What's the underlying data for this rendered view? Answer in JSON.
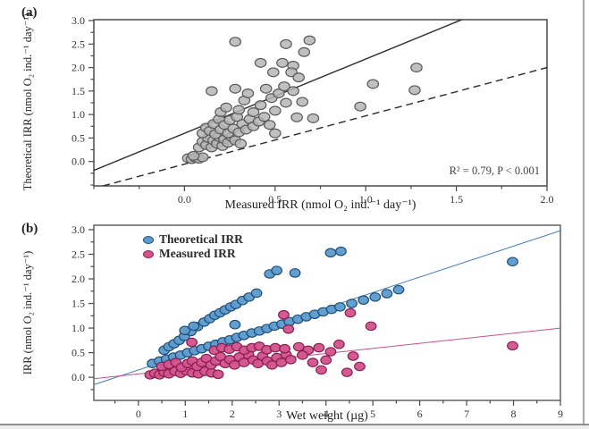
{
  "chart_data": [
    {
      "type": "scatter",
      "panel_label": "(a)",
      "title": "",
      "xlabel": "Measured IRR (nmol O₂ ind.⁻¹ day⁻¹)",
      "ylabel": "Theoretical IRR (nmol O₂ ind.⁻¹ day⁻¹)",
      "annotation": "R² = 0.79, P < 0.001",
      "xlim": [
        -0.5,
        2.0
      ],
      "ylim": [
        -0.52,
        3.02
      ],
      "xticks": [
        0.0,
        0.5,
        1.0,
        1.5,
        2.0
      ],
      "xtick_labels": [
        "0.0",
        "0.5",
        "1.0",
        "1.5",
        "2.0"
      ],
      "yticks": [
        0.0,
        0.5,
        1.0,
        1.5,
        2.0,
        2.5,
        3.0
      ],
      "ytick_labels": [
        "0.0",
        "0.5",
        "1.0",
        "1.5",
        "2.0",
        "2.5",
        "3.0"
      ],
      "minor_x_step": 0.25,
      "minor_y_step": 0.25,
      "grid": false,
      "legend": "none",
      "axis_color": "#4a4a4a",
      "marker_rx": 6.2,
      "marker_ry": 4.9,
      "lines": [
        {
          "name": "regression-line",
          "style": "solid",
          "color": "#2b2b2b",
          "x1": -0.5,
          "y1": -0.19,
          "x2": 1.53,
          "y2": 3.02
        },
        {
          "name": "identity-line",
          "style": "dashed",
          "color": "#2b2b2b",
          "x1": -0.45,
          "y1": -0.52,
          "x2": 2.0,
          "y2": 2.0
        }
      ],
      "series": [
        {
          "name": "IRR data",
          "color": "#b5b5b5",
          "edge": "#5a5a5a",
          "opacity": 0.85,
          "points": [
            [
              0.02,
              0.07
            ],
            [
              0.04,
              0.05
            ],
            [
              0.06,
              0.08
            ],
            [
              0.08,
              0.06
            ],
            [
              0.1,
              0.09
            ],
            [
              0.05,
              0.12
            ],
            [
              0.08,
              0.3
            ],
            [
              0.1,
              0.42
            ],
            [
              0.12,
              0.35
            ],
            [
              0.13,
              0.5
            ],
            [
              0.15,
              0.3
            ],
            [
              0.16,
              0.45
            ],
            [
              0.18,
              0.38
            ],
            [
              0.19,
              0.52
            ],
            [
              0.21,
              0.33
            ],
            [
              0.22,
              0.47
            ],
            [
              0.24,
              0.4
            ],
            [
              0.26,
              0.52
            ],
            [
              0.28,
              0.45
            ],
            [
              0.31,
              0.38
            ],
            [
              0.1,
              0.6
            ],
            [
              0.12,
              0.72
            ],
            [
              0.14,
              0.65
            ],
            [
              0.16,
              0.8
            ],
            [
              0.17,
              0.58
            ],
            [
              0.19,
              0.9
            ],
            [
              0.2,
              0.68
            ],
            [
              0.22,
              0.78
            ],
            [
              0.24,
              0.6
            ],
            [
              0.25,
              0.88
            ],
            [
              0.27,
              0.7
            ],
            [
              0.29,
              0.95
            ],
            [
              0.3,
              0.62
            ],
            [
              0.32,
              0.8
            ],
            [
              0.34,
              0.68
            ],
            [
              0.36,
              0.9
            ],
            [
              0.38,
              0.75
            ],
            [
              0.41,
              0.85
            ],
            [
              0.44,
              0.95
            ],
            [
              0.47,
              0.78
            ],
            [
              0.15,
              1.5
            ],
            [
              0.2,
              1.05
            ],
            [
              0.23,
              1.15
            ],
            [
              0.28,
              1.55
            ],
            [
              0.3,
              1.1
            ],
            [
              0.33,
              1.3
            ],
            [
              0.35,
              1.45
            ],
            [
              0.38,
              1.05
            ],
            [
              0.42,
              1.2
            ],
            [
              0.45,
              1.55
            ],
            [
              0.48,
              1.35
            ],
            [
              0.5,
              1.08
            ],
            [
              0.52,
              1.45
            ],
            [
              0.55,
              1.6
            ],
            [
              0.56,
              1.25
            ],
            [
              0.6,
              1.5
            ],
            [
              0.28,
              2.55
            ],
            [
              0.56,
              2.5
            ],
            [
              0.69,
              2.58
            ],
            [
              0.66,
              2.33
            ],
            [
              0.42,
              2.1
            ],
            [
              0.54,
              2.1
            ],
            [
              0.6,
              2.04
            ],
            [
              0.49,
              1.9
            ],
            [
              0.59,
              1.9
            ],
            [
              0.63,
              1.79
            ],
            [
              0.62,
              0.94
            ],
            [
              0.71,
              0.92
            ],
            [
              0.65,
              1.27
            ],
            [
              0.97,
              1.17
            ],
            [
              1.04,
              1.65
            ],
            [
              1.27,
              1.52
            ],
            [
              1.28,
              2.0
            ],
            [
              0.5,
              0.6
            ]
          ]
        }
      ]
    },
    {
      "type": "scatter",
      "panel_label": "(b)",
      "title": "",
      "xlabel": "Wet weight (µg)",
      "ylabel": "IRR (nmol O₂ ind.⁻¹ day⁻¹)",
      "annotation": "",
      "xlim": [
        -0.95,
        9.0
      ],
      "ylim": [
        -0.47,
        3.09
      ],
      "xticks": [
        0,
        1,
        2,
        3,
        4,
        5,
        6,
        7,
        8,
        9
      ],
      "xtick_labels": [
        "0",
        "1",
        "2",
        "3",
        "4",
        "5",
        "6",
        "7",
        "8",
        "9"
      ],
      "yticks": [
        0.0,
        0.5,
        1.0,
        1.5,
        2.0,
        2.5,
        3.0
      ],
      "ytick_labels": [
        "0.0",
        "0.5",
        "1.0",
        "1.5",
        "2.0",
        "2.5",
        "3.0"
      ],
      "minor_x_step": 0.5,
      "minor_y_step": 0.25,
      "grid": false,
      "legend": "top-left-inside",
      "axis_color": "#4a4a4a",
      "marker_rx": 5.8,
      "marker_ry": 4.7,
      "lines": [
        {
          "name": "theoretical-trend-line",
          "style": "solid",
          "color": "#3c7ab8",
          "x1": -0.95,
          "y1": -0.15,
          "x2": 9.0,
          "y2": 2.98
        },
        {
          "name": "measured-trend-line",
          "style": "solid",
          "color": "#cc4f88",
          "x1": -0.95,
          "y1": -0.03,
          "x2": 9.0,
          "y2": 1.0
        }
      ],
      "series": [
        {
          "name": "Theoretical IRR",
          "color": "#5b9bcd",
          "edge": "#1e4e79",
          "opacity": 0.95,
          "points": [
            [
              0.55,
              0.55
            ],
            [
              0.65,
              0.62
            ],
            [
              0.76,
              0.68
            ],
            [
              0.87,
              0.75
            ],
            [
              0.98,
              0.83
            ],
            [
              1.12,
              0.93
            ],
            [
              1.26,
              1.03
            ],
            [
              1.4,
              1.12
            ],
            [
              1.52,
              1.19
            ],
            [
              1.63,
              1.26
            ],
            [
              1.74,
              1.31
            ],
            [
              1.85,
              1.37
            ],
            [
              1.97,
              1.43
            ],
            [
              2.08,
              1.48
            ],
            [
              2.22,
              1.56
            ],
            [
              2.36,
              1.63
            ],
            [
              0.3,
              0.28
            ],
            [
              0.45,
              0.33
            ],
            [
              0.6,
              0.37
            ],
            [
              0.75,
              0.41
            ],
            [
              0.9,
              0.45
            ],
            [
              1.05,
              0.5
            ],
            [
              1.2,
              0.54
            ],
            [
              1.35,
              0.58
            ],
            [
              1.5,
              0.63
            ],
            [
              1.65,
              0.67
            ],
            [
              1.8,
              0.72
            ],
            [
              1.95,
              0.76
            ],
            [
              2.1,
              0.81
            ],
            [
              2.25,
              0.85
            ],
            [
              2.42,
              0.9
            ],
            [
              2.58,
              0.94
            ],
            [
              2.74,
              0.99
            ],
            [
              2.9,
              1.04
            ],
            [
              3.06,
              1.08
            ],
            [
              3.22,
              1.13
            ],
            [
              3.4,
              1.18
            ],
            [
              3.58,
              1.23
            ],
            [
              3.76,
              1.28
            ],
            [
              3.94,
              1.33
            ],
            [
              4.12,
              1.38
            ],
            [
              4.3,
              1.43
            ],
            [
              4.55,
              1.5
            ],
            [
              4.8,
              1.57
            ],
            [
              5.05,
              1.63
            ],
            [
              5.3,
              1.7
            ],
            [
              5.55,
              1.78
            ],
            [
              2.52,
              1.71
            ],
            [
              2.8,
              2.1
            ],
            [
              2.95,
              2.17
            ],
            [
              3.34,
              2.12
            ],
            [
              4.1,
              2.53
            ],
            [
              4.32,
              2.56
            ],
            [
              7.98,
              2.35
            ],
            [
              0.99,
              0.95
            ],
            [
              1.18,
              1.04
            ],
            [
              2.06,
              1.07
            ]
          ]
        },
        {
          "name": "Measured IRR",
          "color": "#d2528c",
          "edge": "#8c1d50",
          "opacity": 0.95,
          "points": [
            [
              0.25,
              0.05
            ],
            [
              0.35,
              0.08
            ],
            [
              0.45,
              0.05
            ],
            [
              0.55,
              0.1
            ],
            [
              0.65,
              0.07
            ],
            [
              0.78,
              0.12
            ],
            [
              0.9,
              0.08
            ],
            [
              1.02,
              0.13
            ],
            [
              1.15,
              0.09
            ],
            [
              1.28,
              0.07
            ],
            [
              1.42,
              0.12
            ],
            [
              1.56,
              0.09
            ],
            [
              1.7,
              0.06
            ],
            [
              0.5,
              0.22
            ],
            [
              0.65,
              0.26
            ],
            [
              0.8,
              0.3
            ],
            [
              0.92,
              0.2
            ],
            [
              1.05,
              0.28
            ],
            [
              1.15,
              0.33
            ],
            [
              1.25,
              0.22
            ],
            [
              1.35,
              0.3
            ],
            [
              1.45,
              0.38
            ],
            [
              1.55,
              0.25
            ],
            [
              1.65,
              0.33
            ],
            [
              1.75,
              0.42
            ],
            [
              1.85,
              0.28
            ],
            [
              1.95,
              0.36
            ],
            [
              2.05,
              0.25
            ],
            [
              2.15,
              0.41
            ],
            [
              2.25,
              0.3
            ],
            [
              2.35,
              0.46
            ],
            [
              2.45,
              0.35
            ],
            [
              2.55,
              0.28
            ],
            [
              2.65,
              0.43
            ],
            [
              2.75,
              0.33
            ],
            [
              2.85,
              0.25
            ],
            [
              2.95,
              0.4
            ],
            [
              3.05,
              0.3
            ],
            [
              3.15,
              0.46
            ],
            [
              3.25,
              0.36
            ],
            [
              1.62,
              0.55
            ],
            [
              1.78,
              0.6
            ],
            [
              1.94,
              0.57
            ],
            [
              2.1,
              0.62
            ],
            [
              2.26,
              0.55
            ],
            [
              2.42,
              0.6
            ],
            [
              2.58,
              0.63
            ],
            [
              2.74,
              0.56
            ],
            [
              2.92,
              0.6
            ],
            [
              3.12,
              0.58
            ],
            [
              3.42,
              0.62
            ],
            [
              3.62,
              0.55
            ],
            [
              3.5,
              0.45
            ],
            [
              3.72,
              0.3
            ],
            [
              3.9,
              0.15
            ],
            [
              4.1,
              0.52
            ],
            [
              4.28,
              0.67
            ],
            [
              4.45,
              0.1
            ],
            [
              4.58,
              0.43
            ],
            [
              4.72,
              0.22
            ],
            [
              3.85,
              0.6
            ],
            [
              4.0,
              0.35
            ],
            [
              1.14,
              0.71
            ],
            [
              3.1,
              1.27
            ],
            [
              3.2,
              0.98
            ],
            [
              4.52,
              1.31
            ],
            [
              4.96,
              1.04
            ],
            [
              7.98,
              0.64
            ]
          ]
        }
      ]
    }
  ]
}
